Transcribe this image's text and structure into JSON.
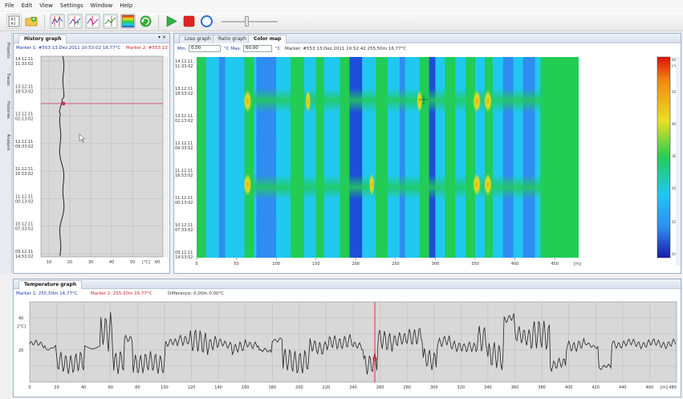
{
  "menu": [
    "File",
    "Edit",
    "View",
    "Settings",
    "Window",
    "Help"
  ],
  "toolbar": {
    "icons": [
      "fiber-select-icon",
      "open-folder-icon",
      "markers-icon",
      "marker-up-icon",
      "marker-down-icon",
      "marker-add-icon",
      "colormap-icon",
      "refresh-icon",
      "play-icon",
      "stop-icon",
      "record-icon"
    ],
    "slider_fraction": 0.45
  },
  "side_tabs": [
    "Projects",
    "Traces",
    "Histories",
    "Analysis"
  ],
  "history": {
    "tab": "History graph",
    "close": "▾ ✕",
    "marker1": "Marker 1: #553 13.Dez.2011 10:53:02 16,77°C",
    "marker2": "Marker 2: #553 13.",
    "time_labels": [
      [
        "14.12.11",
        "11:33:02"
      ],
      [
        "13.12.11",
        "18:53:02"
      ],
      [
        "13.12.11",
        "02:13:02"
      ],
      [
        "12.12.11",
        "09:33:02"
      ],
      [
        "11.12.11",
        "16:53:02"
      ],
      [
        "11.12.11",
        "00:13:02"
      ],
      [
        "10.12.11",
        "07:33:02"
      ],
      [
        "09.12.11",
        "14:53:02"
      ]
    ],
    "x_ticks": [
      "10",
      "20",
      "30",
      "40",
      "50"
    ],
    "x_unit": "[°C]",
    "x_last": "60"
  },
  "colormap": {
    "tabs": [
      "Loss graph",
      "Ratio graph",
      "Color map"
    ],
    "active_tab": 2,
    "min_label": "Min.",
    "min_value": "0,00",
    "max_label": "°C  Max.",
    "max_value": "60,00",
    "unit_after": "°C",
    "marker": "Marker: #553 13.Dez.2011 10:52:42 255,50m 16,77°C",
    "x_ticks": [
      "0",
      "50",
      "100",
      "150",
      "200",
      "250",
      "300",
      "350",
      "400",
      "450"
    ],
    "x_unit": "[m]",
    "scale_labels": [
      "60,00",
      "[°C]",
      "50,00",
      "40,00",
      "30,00",
      "20,00",
      "10,00",
      "0,00"
    ],
    "colors": {
      "deep_blue": "#1e4fd8",
      "blue": "#2f8cf0",
      "cyan": "#20c8f0",
      "green": "#22cc55",
      "yellow": "#e8e020",
      "orange": "#f08a10",
      "red": "#e01010"
    }
  },
  "temperature": {
    "tab": "Temperature graph",
    "marker1": "Marker 1: 255,50m 16,77°C",
    "marker2": "Marker 2: 255,50m 16,77°C",
    "difference": "Difference: 0,00m 0,00°C",
    "y_ticks": [
      "40",
      "[°C]",
      "20"
    ],
    "x_ticks": [
      "0",
      "20",
      "40",
      "60",
      "80",
      "100",
      "120",
      "140",
      "160",
      "180",
      "200",
      "220",
      "240",
      "260",
      "280",
      "300",
      "320",
      "340",
      "360",
      "380",
      "400",
      "420",
      "440",
      "460"
    ],
    "x_unit": "[m] 480"
  }
}
